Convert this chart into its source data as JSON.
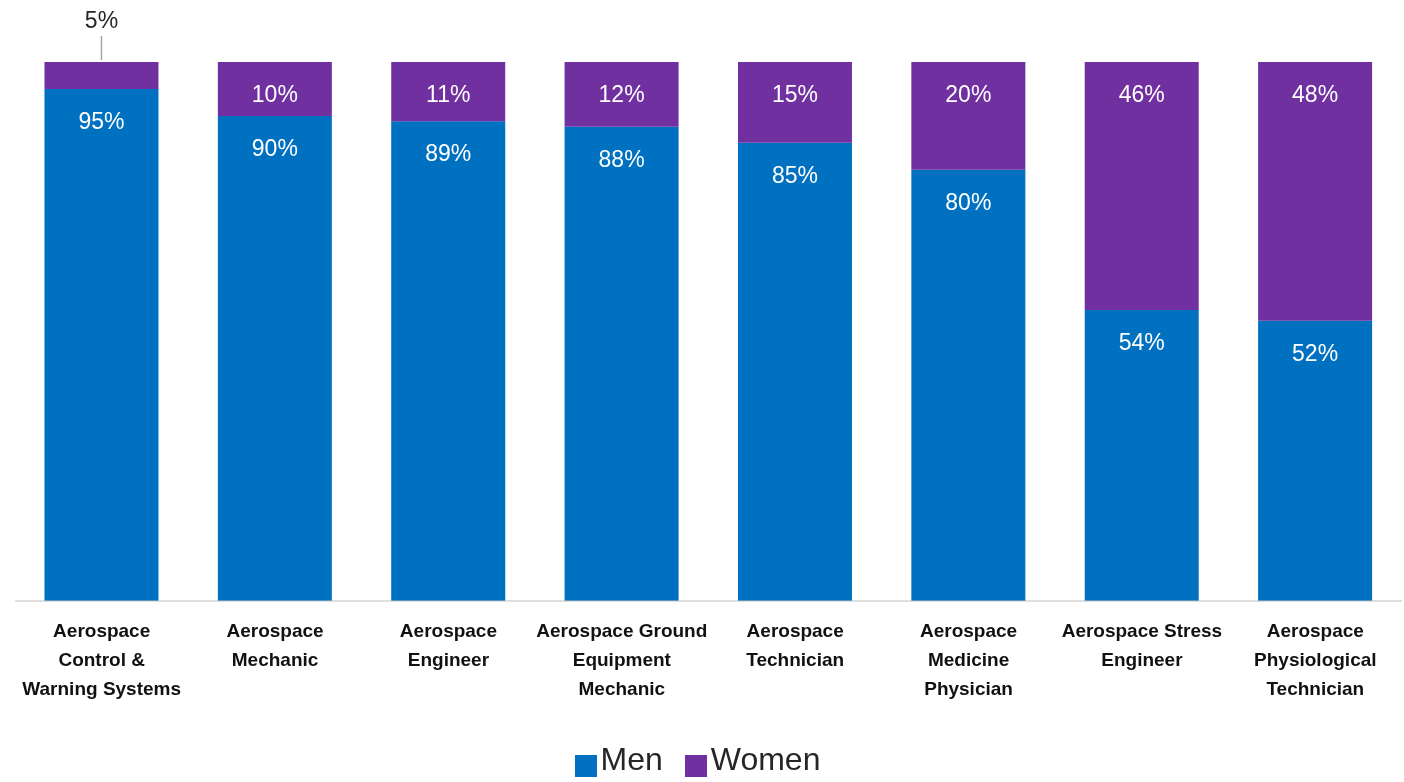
{
  "chart_data": {
    "type": "bar",
    "stacked": true,
    "legend": "bottom",
    "categories": [
      "Aerospace Control & Warning Systems",
      "Aerospace Mechanic",
      "Aerospace Engineer",
      "Aerospace Ground Equipment Mechanic",
      "Aerospace Technician",
      "Aerospace Medicine Physician",
      "Aerospace Stress Engineer",
      "Aerospace Physiological Technician"
    ],
    "series": [
      {
        "name": "Men",
        "color": "#0070c0",
        "values": [
          95,
          90,
          89,
          88,
          85,
          80,
          54,
          52
        ],
        "value_labels": [
          "95%",
          "90%",
          "89%",
          "88%",
          "85%",
          "80%",
          "54%",
          "52%"
        ]
      },
      {
        "name": "Women",
        "color": "#7030a0",
        "values": [
          5,
          10,
          11,
          12,
          15,
          20,
          46,
          48
        ],
        "value_labels": [
          "5%",
          "10%",
          "11%",
          "12%",
          "15%",
          "20%",
          "46%",
          "48%"
        ]
      }
    ]
  }
}
